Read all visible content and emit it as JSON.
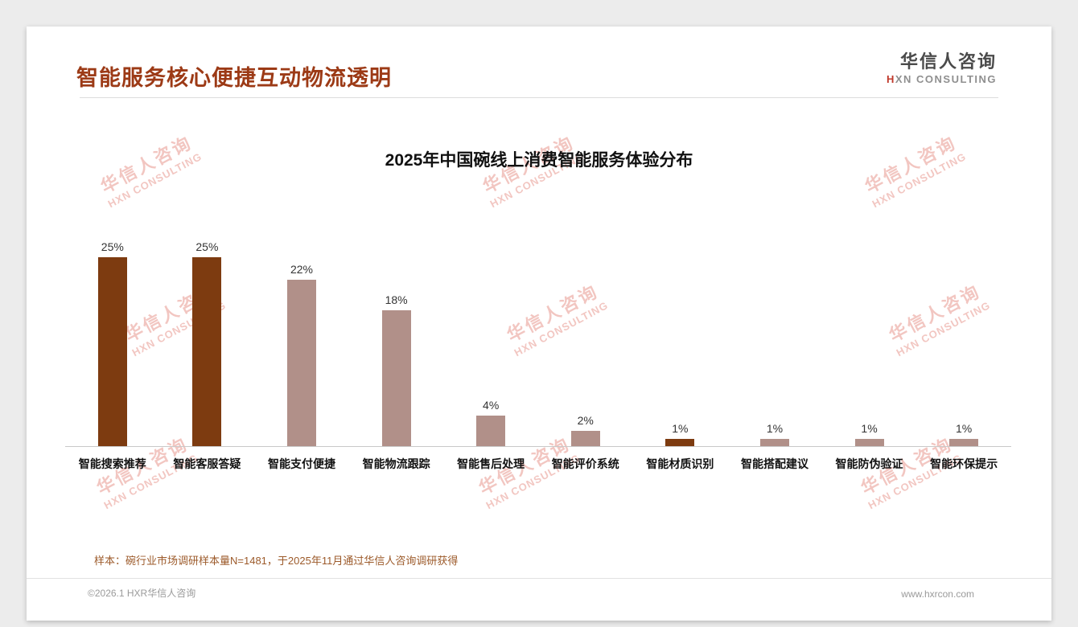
{
  "header": {
    "title": "智能服务核心便捷互动物流透明",
    "logo": {
      "cn": "华信人咨询",
      "en_first": "H",
      "en_rest": "XN CONSULTING"
    }
  },
  "chart_data": {
    "type": "bar",
    "title": "2025年中国碗线上消费智能服务体验分布",
    "categories": [
      "智能搜索推荐",
      "智能客服答疑",
      "智能支付便捷",
      "智能物流跟踪",
      "智能售后处理",
      "智能评价系统",
      "智能材质识别",
      "智能搭配建议",
      "智能防伪验证",
      "智能环保提示"
    ],
    "values": [
      25,
      25,
      22,
      18,
      4,
      2,
      1,
      1,
      1,
      1
    ],
    "value_labels": [
      "25%",
      "25%",
      "22%",
      "18%",
      "4%",
      "2%",
      "1%",
      "1%",
      "1%",
      "1%"
    ],
    "bar_colors": [
      "#7d3b10",
      "#7d3b10",
      "#b19089",
      "#b19089",
      "#b19089",
      "#b19089",
      "#7d3b10",
      "#b19089",
      "#b19089",
      "#b19089"
    ],
    "unit": "%",
    "ylim": [
      0,
      26
    ],
    "grid": false,
    "legend": "none",
    "xlabel": "",
    "ylabel": ""
  },
  "watermark": {
    "line1": "华信人咨询",
    "line2": "HXN CONSULTING"
  },
  "footer": {
    "sample_note": "样本：碗行业市场调研样本量N=1481，于2025年11月通过华信人咨询调研获得",
    "copyright": "©2026.1 HXR华信人咨询",
    "website": "www.hxrcon.com"
  }
}
